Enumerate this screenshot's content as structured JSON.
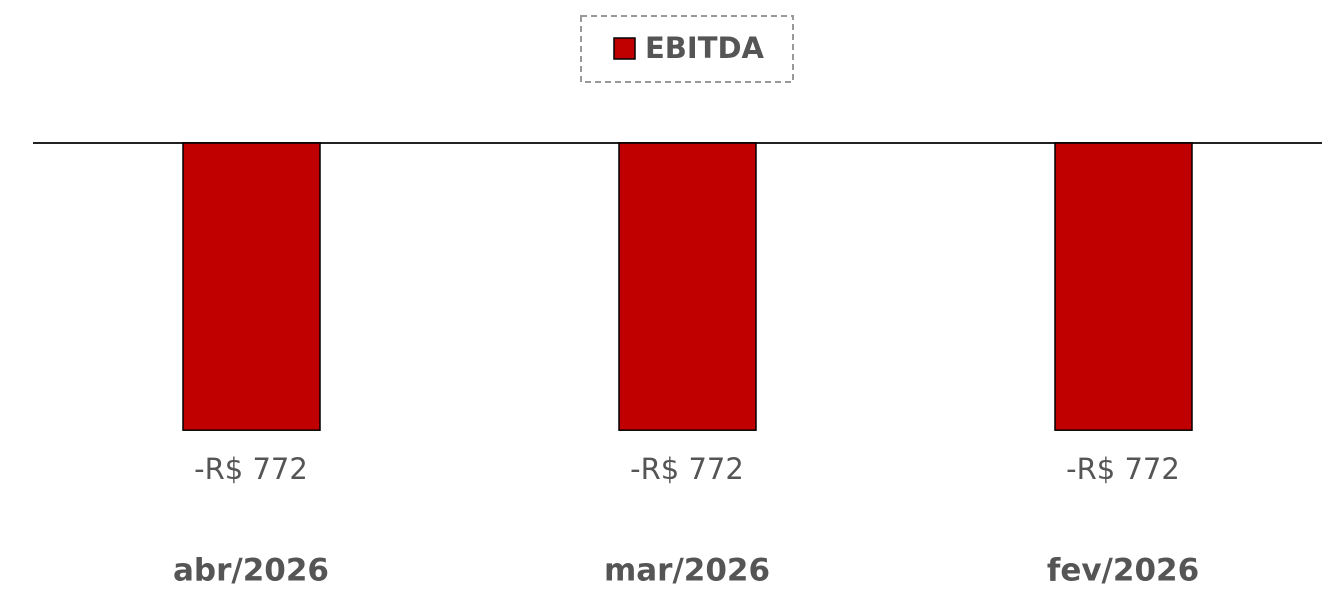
{
  "chart_data": {
    "type": "bar",
    "categories": [
      "abr/2026",
      "mar/2026",
      "fev/2026"
    ],
    "series": [
      {
        "name": "EBITDA",
        "color": "#c00000",
        "values": [
          -772,
          -772,
          -772
        ],
        "value_labels": [
          "-R$ 772",
          "-R$ 772",
          "-R$ 772"
        ]
      }
    ],
    "ylim": [
      -1000,
      0
    ],
    "legend": "top"
  }
}
